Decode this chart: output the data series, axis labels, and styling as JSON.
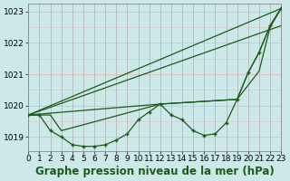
{
  "background_color": "#cce8e8",
  "grid_color_v": "#b0b0b0",
  "grid_color_h": "#e8b0b0",
  "line_color": "#1a5c1a",
  "title": "Graphe pression niveau de la mer (hPa)",
  "xlim": [
    0,
    23
  ],
  "ylim": [
    1018.55,
    1023.25
  ],
  "yticks": [
    1019,
    1020,
    1021,
    1022,
    1023
  ],
  "xticks": [
    0,
    1,
    2,
    3,
    4,
    5,
    6,
    7,
    8,
    9,
    10,
    11,
    12,
    13,
    14,
    15,
    16,
    17,
    18,
    19,
    20,
    21,
    22,
    23
  ],
  "obs_y": [
    1019.7,
    1019.7,
    1019.2,
    1019.0,
    1018.75,
    1018.7,
    1018.7,
    1018.75,
    1018.9,
    1019.1,
    1019.55,
    1019.8,
    1020.05,
    1019.7,
    1019.55,
    1019.2,
    1019.05,
    1019.1,
    1019.45,
    1020.2,
    1021.05,
    1021.7,
    1022.55,
    1023.1
  ],
  "line1_x": [
    0,
    23
  ],
  "line1_y": [
    1019.7,
    1023.1
  ],
  "line2_x": [
    0,
    23
  ],
  "line2_y": [
    1019.7,
    1022.55
  ],
  "line3_x": [
    0,
    12,
    19,
    21,
    22,
    23
  ],
  "line3_y": [
    1019.7,
    1020.05,
    1020.2,
    1021.1,
    1022.5,
    1023.1
  ],
  "line4_x": [
    0,
    1,
    2,
    3,
    12,
    19,
    20,
    21,
    22,
    23
  ],
  "line4_y": [
    1019.7,
    1019.7,
    1019.7,
    1019.2,
    1020.05,
    1020.2,
    1021.05,
    1021.7,
    1022.55,
    1023.1
  ],
  "title_fontsize": 8.5,
  "tick_fontsize": 6.5
}
